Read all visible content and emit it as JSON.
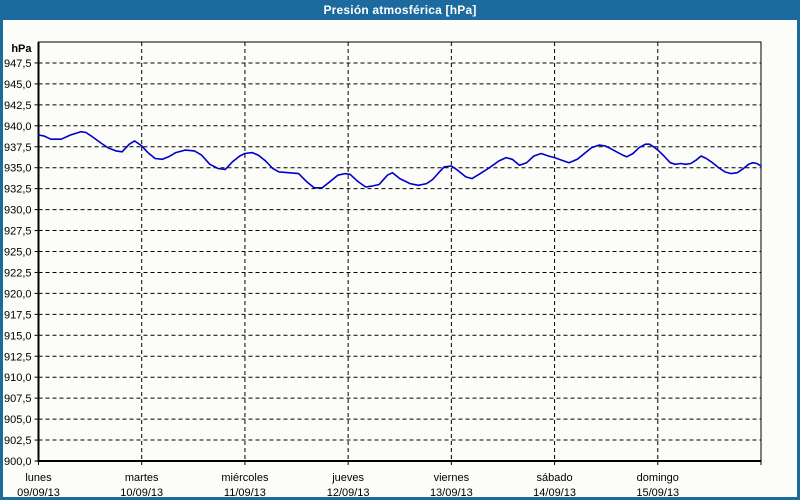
{
  "window": {
    "title": "Presión atmosférica [hPa]"
  },
  "colors": {
    "titlebar_bg": "#1c6a9e",
    "window_border": "#1c6a9e",
    "title_text": "#ffffff",
    "content_bg": "#fcfdf8",
    "grid": "#000000",
    "axis": "#000000",
    "tick_text": "#000000",
    "line": "#0000c8"
  },
  "chart_data": {
    "type": "line",
    "title": "Presión atmosférica [hPa]",
    "unit_label": "hPa",
    "ylabel": "Presión atmosférica (hPa)",
    "ylim": [
      900,
      950
    ],
    "ytick_step": 2.5,
    "grid": "dashed",
    "legend_position": "none",
    "yticks": [
      {
        "v": 947.5,
        "label": "947,5"
      },
      {
        "v": 945.0,
        "label": "945,0"
      },
      {
        "v": 942.5,
        "label": "942,5"
      },
      {
        "v": 940.0,
        "label": "940,0"
      },
      {
        "v": 937.5,
        "label": "937,5"
      },
      {
        "v": 935.0,
        "label": "935,0"
      },
      {
        "v": 932.5,
        "label": "932,5"
      },
      {
        "v": 930.0,
        "label": "930,0"
      },
      {
        "v": 927.5,
        "label": "927,5"
      },
      {
        "v": 925.0,
        "label": "925,0"
      },
      {
        "v": 922.5,
        "label": "922,5"
      },
      {
        "v": 920.0,
        "label": "920,0"
      },
      {
        "v": 917.5,
        "label": "917,5"
      },
      {
        "v": 915.0,
        "label": "915,0"
      },
      {
        "v": 912.5,
        "label": "912,5"
      },
      {
        "v": 910.0,
        "label": "910,0"
      },
      {
        "v": 907.5,
        "label": "907,5"
      },
      {
        "v": 905.0,
        "label": "905,0"
      },
      {
        "v": 902.5,
        "label": "902,5"
      },
      {
        "v": 900.0,
        "label": "900,0"
      }
    ],
    "x_axis": {
      "span_days": 7,
      "days": [
        {
          "weekday": "lunes",
          "date": "09/09/13"
        },
        {
          "weekday": "martes",
          "date": "10/09/13"
        },
        {
          "weekday": "miércoles",
          "date": "11/09/13"
        },
        {
          "weekday": "jueves",
          "date": "12/09/13"
        },
        {
          "weekday": "viernes",
          "date": "13/09/13"
        },
        {
          "weekday": "sábado",
          "date": "14/09/13"
        },
        {
          "weekday": "domingo",
          "date": "15/09/13"
        }
      ]
    },
    "series": [
      {
        "name": "Presión atmosférica",
        "color": "#0000c8",
        "points": [
          [
            0.0,
            938.9
          ],
          [
            0.05,
            938.8
          ],
          [
            0.12,
            938.4
          ],
          [
            0.22,
            938.4
          ],
          [
            0.31,
            938.9
          ],
          [
            0.41,
            939.3
          ],
          [
            0.46,
            939.2
          ],
          [
            0.51,
            938.8
          ],
          [
            0.6,
            938.0
          ],
          [
            0.67,
            937.4
          ],
          [
            0.75,
            937.0
          ],
          [
            0.81,
            936.9
          ],
          [
            0.88,
            937.8
          ],
          [
            0.93,
            938.2
          ],
          [
            1.0,
            937.6
          ],
          [
            1.06,
            936.8
          ],
          [
            1.13,
            936.1
          ],
          [
            1.2,
            936.0
          ],
          [
            1.26,
            936.3
          ],
          [
            1.33,
            936.8
          ],
          [
            1.42,
            937.1
          ],
          [
            1.51,
            937.0
          ],
          [
            1.58,
            936.5
          ],
          [
            1.66,
            935.4
          ],
          [
            1.74,
            934.9
          ],
          [
            1.81,
            934.8
          ],
          [
            1.88,
            935.7
          ],
          [
            1.95,
            936.4
          ],
          [
            2.0,
            936.7
          ],
          [
            2.07,
            936.8
          ],
          [
            2.13,
            936.5
          ],
          [
            2.2,
            935.8
          ],
          [
            2.27,
            934.9
          ],
          [
            2.33,
            934.5
          ],
          [
            2.42,
            934.4
          ],
          [
            2.52,
            934.3
          ],
          [
            2.6,
            933.3
          ],
          [
            2.67,
            932.6
          ],
          [
            2.75,
            932.6
          ],
          [
            2.83,
            933.4
          ],
          [
            2.9,
            934.1
          ],
          [
            2.97,
            934.3
          ],
          [
            3.02,
            934.2
          ],
          [
            3.09,
            933.4
          ],
          [
            3.17,
            932.7
          ],
          [
            3.23,
            932.8
          ],
          [
            3.3,
            933.0
          ],
          [
            3.38,
            934.1
          ],
          [
            3.43,
            934.4
          ],
          [
            3.5,
            933.7
          ],
          [
            3.6,
            933.1
          ],
          [
            3.68,
            932.9
          ],
          [
            3.76,
            933.1
          ],
          [
            3.82,
            933.6
          ],
          [
            3.87,
            934.3
          ],
          [
            3.93,
            935.1
          ],
          [
            4.0,
            935.2
          ],
          [
            4.06,
            934.7
          ],
          [
            4.14,
            933.9
          ],
          [
            4.2,
            933.7
          ],
          [
            4.28,
            934.3
          ],
          [
            4.37,
            935.0
          ],
          [
            4.46,
            935.8
          ],
          [
            4.53,
            936.2
          ],
          [
            4.59,
            936.0
          ],
          [
            4.66,
            935.3
          ],
          [
            4.73,
            935.6
          ],
          [
            4.8,
            936.4
          ],
          [
            4.87,
            936.7
          ],
          [
            4.94,
            936.4
          ],
          [
            5.0,
            936.2
          ],
          [
            5.07,
            935.9
          ],
          [
            5.14,
            935.6
          ],
          [
            5.22,
            936.0
          ],
          [
            5.3,
            936.8
          ],
          [
            5.36,
            937.4
          ],
          [
            5.43,
            937.7
          ],
          [
            5.49,
            937.6
          ],
          [
            5.54,
            937.3
          ],
          [
            5.6,
            936.9
          ],
          [
            5.66,
            936.5
          ],
          [
            5.7,
            936.3
          ],
          [
            5.76,
            936.7
          ],
          [
            5.82,
            937.4
          ],
          [
            5.88,
            937.8
          ],
          [
            5.92,
            937.8
          ],
          [
            5.97,
            937.4
          ],
          [
            6.01,
            937.0
          ],
          [
            6.06,
            936.4
          ],
          [
            6.12,
            935.6
          ],
          [
            6.17,
            935.4
          ],
          [
            6.22,
            935.5
          ],
          [
            6.27,
            935.4
          ],
          [
            6.32,
            935.5
          ],
          [
            6.37,
            935.9
          ],
          [
            6.42,
            936.4
          ],
          [
            6.47,
            936.1
          ],
          [
            6.53,
            935.6
          ],
          [
            6.59,
            935.0
          ],
          [
            6.65,
            934.5
          ],
          [
            6.71,
            934.3
          ],
          [
            6.77,
            934.4
          ],
          [
            6.83,
            934.9
          ],
          [
            6.88,
            935.4
          ],
          [
            6.92,
            935.6
          ],
          [
            6.96,
            935.5
          ],
          [
            7.0,
            935.2
          ]
        ]
      }
    ]
  }
}
